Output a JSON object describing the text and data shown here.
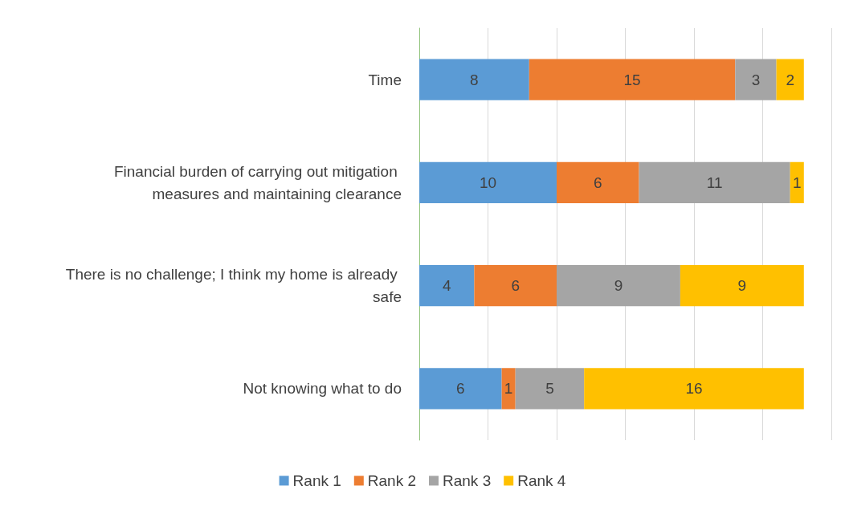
{
  "chart_data": {
    "type": "bar",
    "orientation": "horizontal",
    "stacked": true,
    "categories": [
      "Time",
      "Financial burden of carrying out mitigation measures and maintaining clearance",
      "There is no challenge; I think my home is already safe",
      "Not knowing what to do"
    ],
    "series": [
      {
        "name": "Rank 1",
        "color": "#5b9bd5",
        "values": [
          8,
          10,
          4,
          6
        ]
      },
      {
        "name": "Rank 2",
        "color": "#ed7d31",
        "values": [
          15,
          6,
          6,
          1
        ]
      },
      {
        "name": "Rank 3",
        "color": "#a5a5a5",
        "values": [
          3,
          11,
          9,
          5
        ]
      },
      {
        "name": "Rank 4",
        "color": "#ffc000",
        "values": [
          2,
          1,
          9,
          16
        ]
      }
    ],
    "xlim": [
      0,
      30
    ],
    "xticks": [
      {
        "value": 0,
        "label": null
      },
      {
        "value": 5,
        "label": null
      },
      {
        "value": 10,
        "label": null
      },
      {
        "value": 15,
        "label": null
      },
      {
        "value": 20,
        "label": null
      },
      {
        "value": 25,
        "label": null
      },
      {
        "value": 30,
        "label": null
      }
    ],
    "grid": "x",
    "legend": "bottom",
    "tick_labels": "y",
    "data_labels": true
  }
}
